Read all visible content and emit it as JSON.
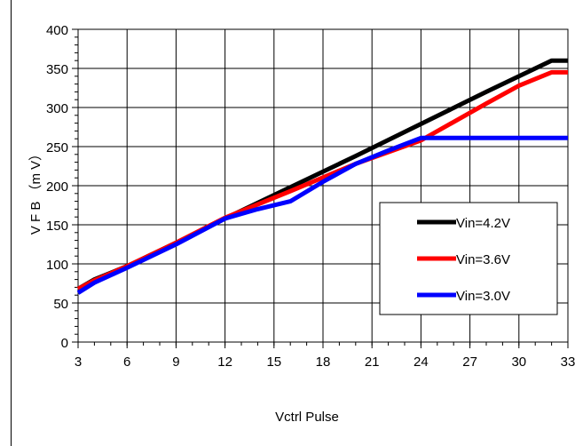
{
  "chart_data": {
    "type": "line",
    "xlabel": "Vctrl Pulse",
    "ylabel": "V F B （m V）",
    "xlim": [
      3,
      33
    ],
    "ylim": [
      0,
      400
    ],
    "xticks": [
      "3",
      "6",
      "9",
      "12",
      "15",
      "18",
      "21",
      "24",
      "27",
      "30",
      "33"
    ],
    "yticks": [
      "0",
      "50",
      "100",
      "150",
      "200",
      "250",
      "300",
      "350",
      "400"
    ],
    "grid": true,
    "legend_position": "lower-right",
    "series": [
      {
        "name": "Vin=4.2V",
        "color": "#000000",
        "points": [
          [
            3,
            68
          ],
          [
            4,
            80
          ],
          [
            6,
            97
          ],
          [
            9,
            127
          ],
          [
            12,
            158
          ],
          [
            16,
            198
          ],
          [
            20,
            238
          ],
          [
            24,
            279
          ],
          [
            28,
            320
          ],
          [
            32,
            360
          ],
          [
            33,
            360
          ]
        ]
      },
      {
        "name": "Vin=3.6V",
        "color": "#ff0000",
        "points": [
          [
            3,
            68
          ],
          [
            4,
            79
          ],
          [
            6,
            97
          ],
          [
            9,
            127
          ],
          [
            12,
            159
          ],
          [
            14,
            176
          ],
          [
            16,
            193
          ],
          [
            20,
            228
          ],
          [
            24,
            258
          ],
          [
            28,
            305
          ],
          [
            30,
            328
          ],
          [
            32,
            345
          ],
          [
            33,
            345
          ]
        ]
      },
      {
        "name": "Vin=3.0V",
        "color": "#0000ff",
        "points": [
          [
            3,
            63
          ],
          [
            4,
            76
          ],
          [
            6,
            95
          ],
          [
            9,
            125
          ],
          [
            12,
            158
          ],
          [
            14,
            170
          ],
          [
            16,
            180
          ],
          [
            18,
            205
          ],
          [
            20,
            228
          ],
          [
            22,
            245
          ],
          [
            24,
            261
          ],
          [
            33,
            261
          ]
        ]
      }
    ]
  }
}
